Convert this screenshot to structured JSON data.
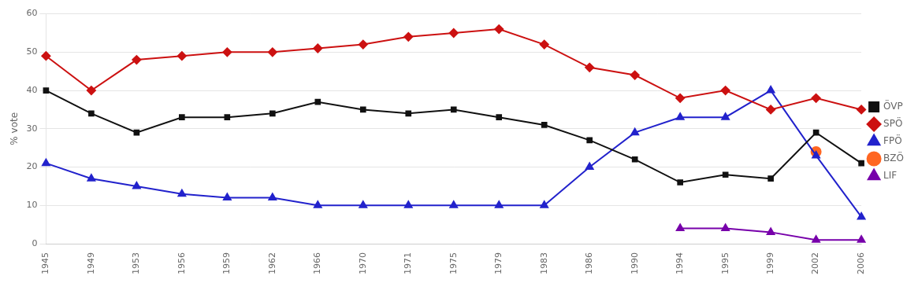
{
  "chart_data": {
    "type": "line",
    "categories": [
      "1945",
      "1949",
      "1953",
      "1956",
      "1959",
      "1962",
      "1966",
      "1970",
      "1971",
      "1975",
      "1979",
      "1983",
      "1986",
      "1990",
      "1994",
      "1995",
      "1999",
      "2002",
      "2006"
    ],
    "series": [
      {
        "name": "ÖVP",
        "color": "#111111",
        "marker": "square",
        "values": [
          40,
          34,
          29,
          33,
          33,
          34,
          37,
          35,
          34,
          35,
          33,
          31,
          27,
          22,
          16,
          18,
          17,
          29,
          21
        ]
      },
      {
        "name": "SPÖ",
        "color": "#cc1111",
        "marker": "diamond",
        "values": [
          49,
          40,
          48,
          49,
          50,
          50,
          51,
          52,
          54,
          55,
          56,
          52,
          46,
          44,
          38,
          40,
          35,
          38,
          35
        ]
      },
      {
        "name": "FPÖ",
        "color": "#2222cc",
        "marker": "triangle",
        "values": [
          21,
          17,
          15,
          13,
          12,
          12,
          10,
          10,
          10,
          10,
          10,
          10,
          20,
          29,
          33,
          33,
          40,
          23,
          7
        ]
      },
      {
        "name": "BZÖ",
        "color": "#ff6622",
        "marker": "circle",
        "values": [
          null,
          null,
          null,
          null,
          null,
          null,
          null,
          null,
          null,
          null,
          null,
          null,
          null,
          null,
          null,
          null,
          null,
          24,
          null
        ]
      },
      {
        "name": "LIF",
        "color": "#7700aa",
        "marker": "triangle",
        "values": [
          null,
          null,
          null,
          null,
          null,
          null,
          null,
          null,
          null,
          null,
          null,
          null,
          null,
          null,
          4,
          4,
          3,
          1,
          1
        ]
      }
    ],
    "ylabel": "% vote",
    "ylim": [
      0,
      60
    ],
    "yticks": [
      0,
      10,
      20,
      30,
      40,
      50,
      60
    ],
    "grid": true,
    "legend": "right"
  }
}
